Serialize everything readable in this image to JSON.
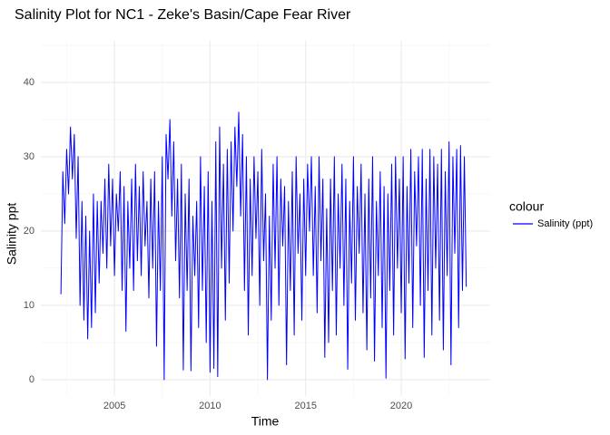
{
  "chart_data": {
    "type": "line",
    "title": "Salinity Plot for NC1 - Zeke's Basin/Cape Fear River",
    "x_label": "Time",
    "y_label": "Salinity ppt",
    "legend_title": "colour",
    "legend_position": "right",
    "grid": true,
    "xlim": [
      2001.15,
      2024.65
    ],
    "xticks": [
      2005,
      2010,
      2015,
      2020
    ],
    "ylim": [
      -2.2,
      45.6
    ],
    "yticks": [
      0,
      10,
      20,
      30,
      40
    ],
    "x": [
      2002.2,
      2002.3,
      2002.4,
      2002.5,
      2002.6,
      2002.7,
      2002.8,
      2002.9,
      2003.0,
      2003.1,
      2003.2,
      2003.3,
      2003.4,
      2003.5,
      2003.6,
      2003.7,
      2003.8,
      2003.9,
      2004.0,
      2004.1,
      2004.2,
      2004.3,
      2004.4,
      2004.5,
      2004.6,
      2004.7,
      2004.8,
      2004.9,
      2005.0,
      2005.1,
      2005.2,
      2005.3,
      2005.4,
      2005.5,
      2005.6,
      2005.7,
      2005.8,
      2005.9,
      2006.0,
      2006.1,
      2006.2,
      2006.3,
      2006.4,
      2006.5,
      2006.6,
      2006.7,
      2006.8,
      2006.9,
      2007.0,
      2007.1,
      2007.2,
      2007.3,
      2007.4,
      2007.5,
      2007.6,
      2007.7,
      2007.8,
      2007.9,
      2008.0,
      2008.1,
      2008.2,
      2008.3,
      2008.4,
      2008.5,
      2008.6,
      2008.7,
      2008.8,
      2008.9,
      2009.0,
      2009.1,
      2009.2,
      2009.3,
      2009.4,
      2009.5,
      2009.6,
      2009.7,
      2009.8,
      2009.9,
      2010.0,
      2010.1,
      2010.2,
      2010.3,
      2010.4,
      2010.5,
      2010.6,
      2010.7,
      2010.8,
      2010.9,
      2011.0,
      2011.1,
      2011.2,
      2011.3,
      2011.4,
      2011.5,
      2011.6,
      2011.7,
      2011.8,
      2011.9,
      2012.0,
      2012.1,
      2012.2,
      2012.3,
      2012.4,
      2012.5,
      2012.6,
      2012.7,
      2012.8,
      2012.9,
      2013.0,
      2013.1,
      2013.2,
      2013.3,
      2013.4,
      2013.5,
      2013.6,
      2013.7,
      2013.8,
      2013.9,
      2014.0,
      2014.1,
      2014.2,
      2014.3,
      2014.4,
      2014.5,
      2014.6,
      2014.7,
      2014.8,
      2014.9,
      2015.0,
      2015.1,
      2015.2,
      2015.3,
      2015.4,
      2015.5,
      2015.6,
      2015.7,
      2015.8,
      2015.9,
      2016.0,
      2016.1,
      2016.2,
      2016.3,
      2016.4,
      2016.5,
      2016.6,
      2016.7,
      2016.8,
      2016.9,
      2017.0,
      2017.1,
      2017.2,
      2017.3,
      2017.4,
      2017.5,
      2017.6,
      2017.7,
      2017.8,
      2017.9,
      2018.0,
      2018.1,
      2018.2,
      2018.3,
      2018.4,
      2018.5,
      2018.6,
      2018.7,
      2018.8,
      2018.9,
      2019.0,
      2019.1,
      2019.2,
      2019.3,
      2019.4,
      2019.5,
      2019.6,
      2019.7,
      2019.8,
      2019.9,
      2020.0,
      2020.1,
      2020.2,
      2020.3,
      2020.4,
      2020.5,
      2020.6,
      2020.7,
      2020.8,
      2020.9,
      2021.0,
      2021.1,
      2021.2,
      2021.3,
      2021.4,
      2021.5,
      2021.6,
      2021.7,
      2021.8,
      2021.9,
      2022.0,
      2022.1,
      2022.2,
      2022.3,
      2022.4,
      2022.5,
      2022.6,
      2022.7,
      2022.8,
      2022.9,
      2023.0,
      2023.1,
      2023.2,
      2023.3,
      2023.4
    ],
    "series": [
      {
        "name": "Salinity (ppt)",
        "color": "#0000ff",
        "values": [
          11.5,
          28,
          21,
          31,
          25,
          34,
          27,
          33,
          19,
          30,
          10,
          24,
          8,
          22,
          5.5,
          20,
          7,
          25,
          9,
          24,
          13,
          24,
          17,
          27,
          15,
          29,
          18,
          27,
          14,
          25,
          20,
          28,
          12,
          26,
          6.5,
          24,
          15,
          27,
          12,
          29,
          16,
          26,
          14,
          28,
          18,
          24,
          11,
          27,
          15,
          28,
          4.5,
          24,
          12,
          30,
          0,
          33,
          27,
          35,
          22,
          32,
          16,
          27,
          11,
          29,
          1.3,
          25,
          12,
          27,
          1.2,
          22,
          14,
          24,
          7,
          30,
          12,
          26,
          5,
          28,
          1,
          24,
          1.5,
          32,
          0.4,
          34,
          15,
          29,
          8,
          31,
          13,
          32,
          20,
          34,
          26,
          36,
          22,
          33,
          12,
          30,
          6,
          27,
          14,
          30,
          19,
          28,
          10,
          31,
          16,
          25,
          0,
          22,
          8,
          29,
          15,
          30,
          10,
          27,
          18,
          26,
          2,
          24,
          12,
          28,
          6,
          30,
          17,
          25,
          8,
          27,
          14,
          29,
          20,
          30,
          14,
          26,
          9,
          30,
          16,
          27,
          3,
          23,
          5,
          27,
          12,
          30,
          6,
          25,
          15,
          29,
          10,
          27,
          1.4,
          24,
          13,
          30,
          8,
          26,
          17,
          29,
          9,
          25,
          4,
          27,
          11,
          30,
          2.5,
          24,
          14,
          28,
          7,
          26,
          0.2,
          25,
          12,
          29,
          6,
          30,
          15,
          27,
          9,
          30,
          2.8,
          26,
          13,
          31,
          7,
          28,
          18,
          30,
          10,
          31,
          3,
          27,
          12,
          31,
          6,
          30,
          15,
          29,
          8,
          31,
          4,
          28,
          14,
          32,
          2,
          30,
          17,
          31,
          7,
          31.5,
          12,
          30,
          12.5
        ]
      }
    ]
  }
}
